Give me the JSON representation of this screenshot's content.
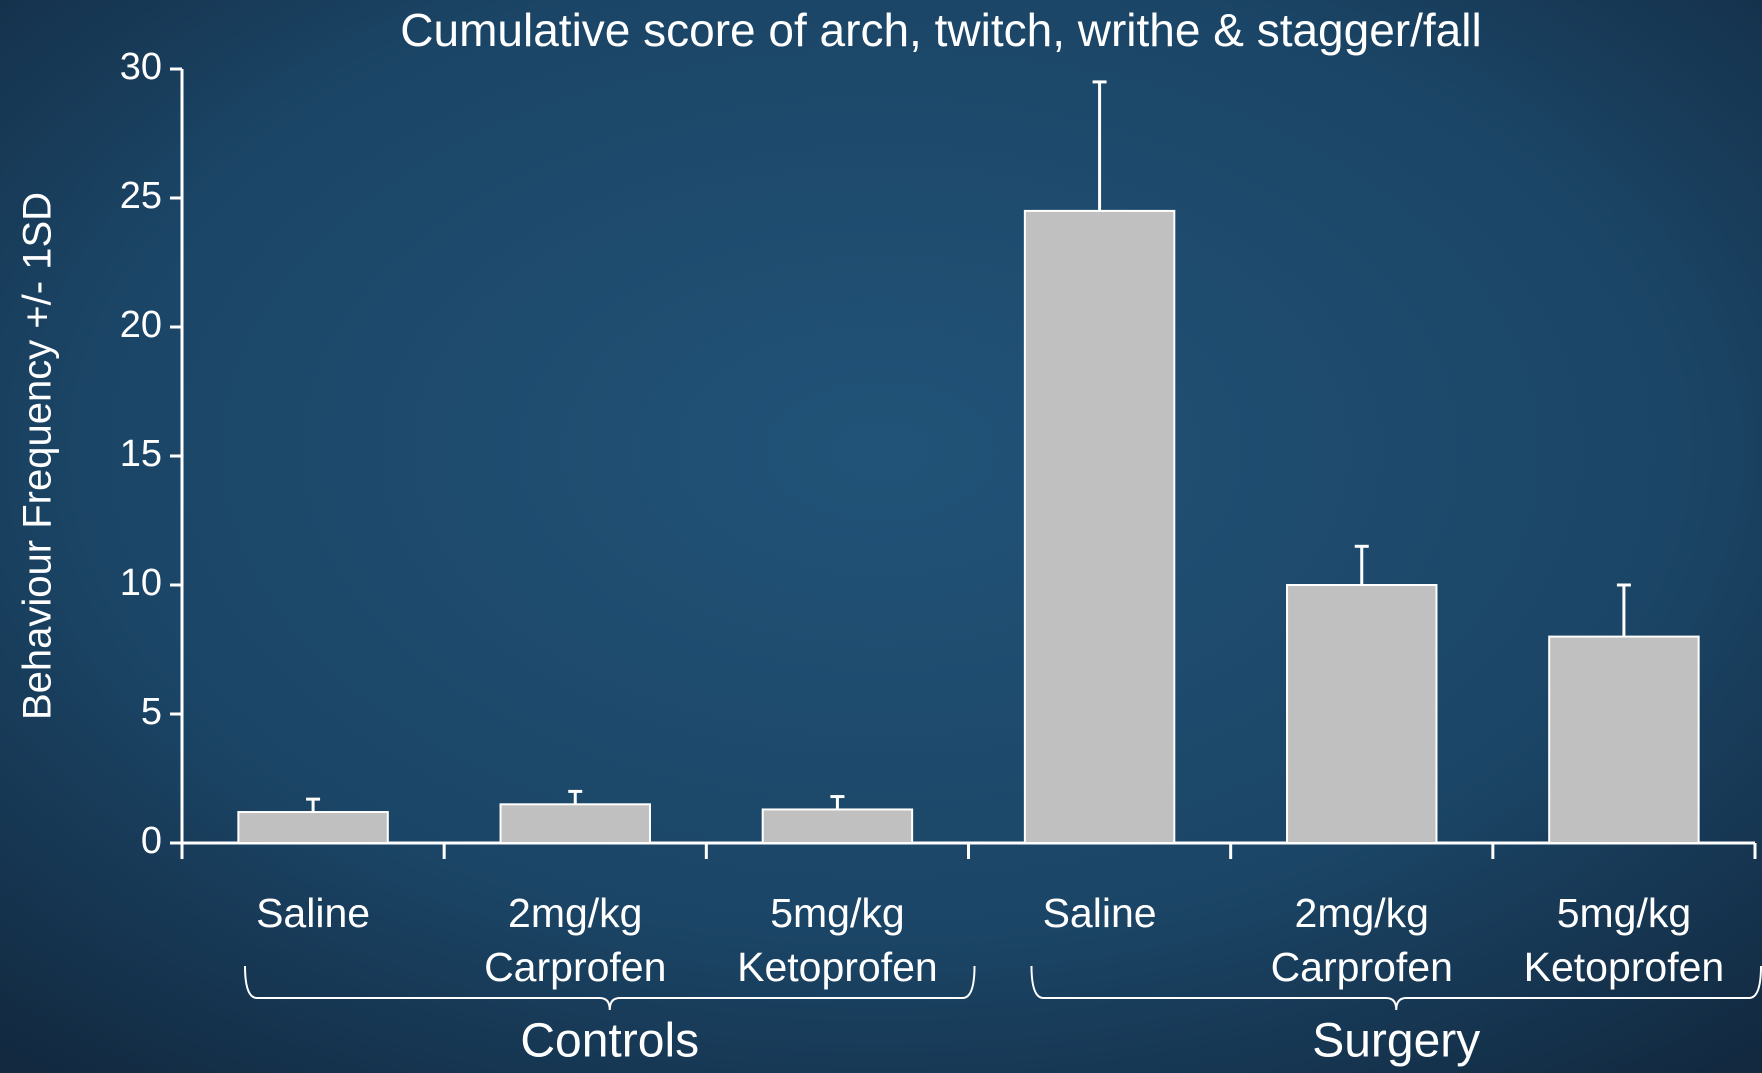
{
  "chart_data": {
    "type": "bar",
    "title": "Cumulative score of arch, twitch, writhe & stagger/fall",
    "y_label": "Behaviour Frequency +/- 1SD",
    "categories": [
      [
        "Saline"
      ],
      [
        "2mg/kg",
        "Carprofen"
      ],
      [
        "5mg/kg",
        "Ketoprofen"
      ],
      [
        "Saline"
      ],
      [
        "2mg/kg",
        "Carprofen"
      ],
      [
        "5mg/kg",
        "Ketoprofen"
      ]
    ],
    "groups": [
      "Controls",
      "Surgery"
    ],
    "values": [
      1.2,
      1.5,
      1.3,
      24.5,
      10,
      8
    ],
    "errors": [
      0.5,
      0.5,
      0.5,
      5,
      1.5,
      2
    ],
    "color": "#c0c0c0",
    "ylim": [
      0,
      30
    ],
    "yticks": [
      0,
      5,
      10,
      15,
      20,
      25,
      30
    ]
  }
}
